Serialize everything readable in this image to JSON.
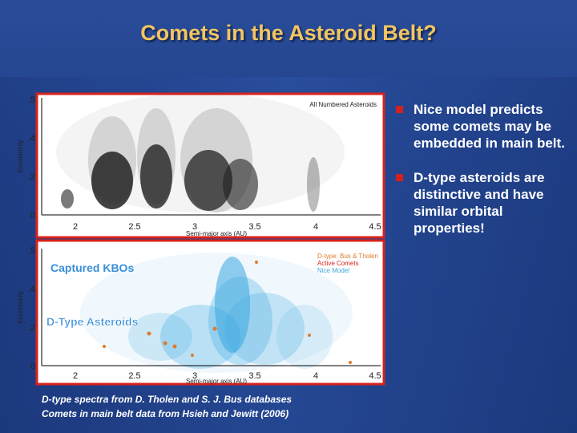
{
  "title": "Comets in the Asteroid Belt?",
  "bullets": [
    "Nice model predicts some comets may be embedded in main belt.",
    "D-type asteroids are distinctive and have similar orbital properties!"
  ],
  "footnotes": [
    "D-type spectra from D. Tholen and S. J. Bus databases",
    "Comets in main belt data from Hsieh and Jewitt (2006)"
  ],
  "plots": [
    {
      "x_label": "Semi-major axis (AU)",
      "y_label": "Eccentricity",
      "corner_label": "All Numbered Asteroids",
      "x_ticks": [
        "2",
        "2.5",
        "3",
        "3.5",
        "4",
        "4.5"
      ],
      "y_ticks": [
        ".5",
        ".4",
        ".2",
        "0"
      ]
    },
    {
      "x_label": "Semi-major axis (AU)",
      "y_label": "Eccentricity",
      "x_ticks": [
        "2",
        "2.5",
        "3",
        "3.5",
        "4",
        "4.5"
      ],
      "y_ticks": [
        ".5",
        ".4",
        ".2",
        "0"
      ],
      "annotations": [
        "Captured KBOs",
        "D-Type Asteroids"
      ],
      "legend": [
        "D-type: Bus & Tholen",
        "Active Comets",
        "Nice Model"
      ]
    }
  ]
}
